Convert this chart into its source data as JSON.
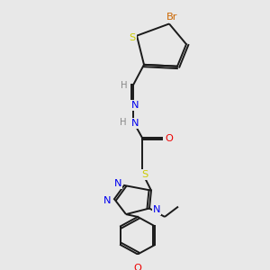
{
  "bg_color": "#e8e8e8",
  "bond_color": "#1a1a1a",
  "atom_colors": {
    "Br": "#cc6600",
    "S": "#cccc00",
    "N": "#0000ee",
    "O": "#ee0000",
    "H": "#888888"
  },
  "font_size": 7.2,
  "figsize": [
    3.0,
    3.0
  ],
  "dpi": 100
}
